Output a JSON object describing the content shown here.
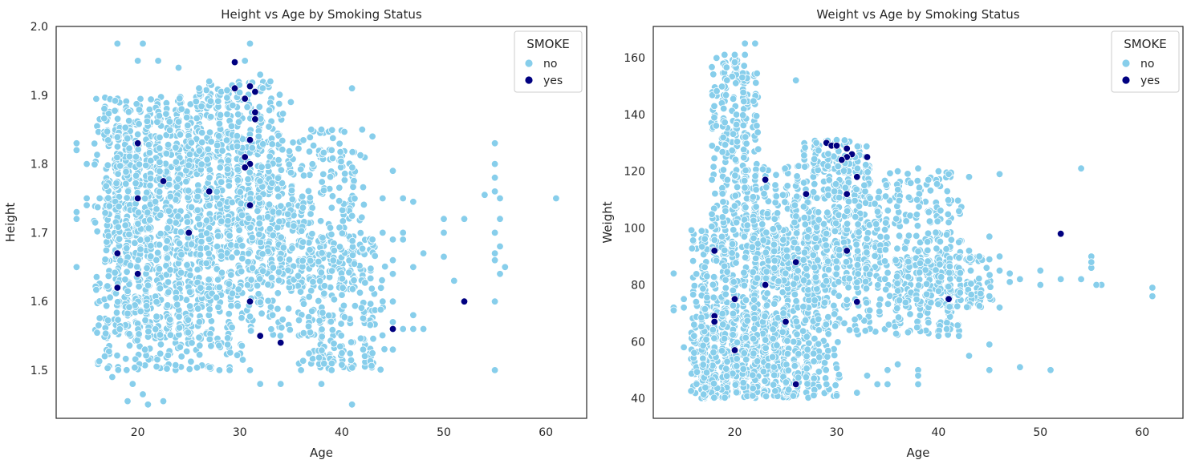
{
  "colors": {
    "no": "#87ceeb",
    "yes": "#000080",
    "axes": "#262626",
    "point_edge": "#ffffff"
  },
  "chart_data": [
    {
      "type": "scatter",
      "title": "Height vs Age by Smoking Status",
      "xlabel": "Age",
      "ylabel": "Height",
      "xlim": [
        12,
        64
      ],
      "ylim": [
        1.43,
        2.0
      ],
      "xticks": [
        20,
        30,
        40,
        50,
        60
      ],
      "yticks": [
        1.5,
        1.6,
        1.7,
        1.8,
        1.9,
        2.0
      ],
      "ytick_labels": [
        "1.5",
        "1.6",
        "1.7",
        "1.8",
        "1.9",
        "2.0"
      ],
      "grid": false,
      "legend": {
        "title": "SMOKE",
        "placement": "top-right",
        "entries": [
          "no",
          "yes"
        ]
      },
      "series": [
        {
          "name": "no",
          "color": "#87ceeb",
          "dense_regions": [
            {
              "x": [
                16,
                30
              ],
              "y": [
                1.5,
                1.9
              ],
              "n": 900
            },
            {
              "x": [
                17,
                26
              ],
              "y": [
                1.55,
                1.88
              ],
              "n": 500
            },
            {
              "x": [
                26,
                34
              ],
              "y": [
                1.6,
                1.92
              ],
              "n": 400
            },
            {
              "x": [
                30,
                42
              ],
              "y": [
                1.62,
                1.85
              ],
              "n": 350
            },
            {
              "x": [
                36,
                44
              ],
              "y": [
                1.5,
                1.7
              ],
              "n": 250
            },
            {
              "x": [
                30,
                36
              ],
              "y": [
                1.55,
                1.78
              ],
              "n": 150
            }
          ],
          "points": [
            [
              14,
              1.83
            ],
            [
              14,
              1.82
            ],
            [
              14,
              1.73
            ],
            [
              14,
              1.72
            ],
            [
              14,
              1.65
            ],
            [
              15,
              1.75
            ],
            [
              15,
              1.74
            ],
            [
              15,
              1.8
            ],
            [
              18,
              1.975
            ],
            [
              20.5,
              1.975
            ],
            [
              20,
              1.95
            ],
            [
              22,
              1.95
            ],
            [
              24,
              1.94
            ],
            [
              31,
              1.975
            ],
            [
              30.5,
              1.95
            ],
            [
              19,
              1.455
            ],
            [
              20.5,
              1.465
            ],
            [
              21,
              1.45
            ],
            [
              22.5,
              1.455
            ],
            [
              17.5,
              1.49
            ],
            [
              19.5,
              1.48
            ],
            [
              41,
              1.45
            ],
            [
              28,
              1.5
            ],
            [
              29,
              1.5
            ],
            [
              31,
              1.5
            ],
            [
              32,
              1.48
            ],
            [
              34,
              1.48
            ],
            [
              38,
              1.48
            ],
            [
              36,
              1.5
            ],
            [
              39,
              1.5
            ],
            [
              41,
              1.91
            ],
            [
              42,
              1.85
            ],
            [
              44,
              1.75
            ],
            [
              45,
              1.79
            ],
            [
              46,
              1.75
            ],
            [
              47,
              1.745
            ],
            [
              43,
              1.69
            ],
            [
              44,
              1.7
            ],
            [
              45,
              1.69
            ],
            [
              45,
              1.66
            ],
            [
              45,
              1.64
            ],
            [
              44,
              1.6
            ],
            [
              45,
              1.57
            ],
            [
              46,
              1.56
            ],
            [
              47,
              1.56
            ],
            [
              48,
              1.56
            ],
            [
              45,
              1.53
            ],
            [
              47,
              1.65
            ],
            [
              48,
              1.67
            ],
            [
              47,
              1.58
            ],
            [
              46,
              1.69
            ],
            [
              45,
              1.6
            ],
            [
              46,
              1.7
            ],
            [
              50,
              1.72
            ],
            [
              50,
              1.665
            ],
            [
              50,
              1.7
            ],
            [
              51,
              1.63
            ],
            [
              52,
              1.72
            ],
            [
              54,
              1.755
            ],
            [
              55,
              1.83
            ],
            [
              55,
              1.8
            ],
            [
              55,
              1.78
            ],
            [
              55,
              1.76
            ],
            [
              55.5,
              1.75
            ],
            [
              55.5,
              1.72
            ],
            [
              55,
              1.7
            ],
            [
              55.5,
              1.68
            ],
            [
              55,
              1.67
            ],
            [
              55,
              1.66
            ],
            [
              55.5,
              1.64
            ],
            [
              55,
              1.6
            ],
            [
              55,
              1.5
            ],
            [
              56,
              1.65
            ],
            [
              61,
              1.75
            ],
            [
              35,
              1.89
            ],
            [
              43,
              1.84
            ],
            [
              37,
              1.85
            ],
            [
              38,
              1.85
            ],
            [
              39,
              1.82
            ],
            [
              33,
              1.92
            ],
            [
              32,
              1.93
            ],
            [
              27,
              1.92
            ],
            [
              26,
              1.91
            ]
          ]
        },
        {
          "name": "yes",
          "color": "#000080",
          "points": [
            [
              29.5,
              1.948
            ],
            [
              31,
              1.913
            ],
            [
              29.5,
              1.91
            ],
            [
              30.5,
              1.895
            ],
            [
              31.5,
              1.905
            ],
            [
              31.5,
              1.875
            ],
            [
              31.5,
              1.865
            ],
            [
              31,
              1.835
            ],
            [
              30.5,
              1.81
            ],
            [
              31,
              1.8
            ],
            [
              30.5,
              1.795
            ],
            [
              31,
              1.74
            ],
            [
              31,
              1.6
            ],
            [
              20,
              1.83
            ],
            [
              22.5,
              1.775
            ],
            [
              20,
              1.75
            ],
            [
              27,
              1.76
            ],
            [
              25,
              1.7
            ],
            [
              18,
              1.67
            ],
            [
              20,
              1.64
            ],
            [
              18,
              1.62
            ],
            [
              32,
              1.55
            ],
            [
              34,
              1.54
            ],
            [
              45,
              1.56
            ],
            [
              52,
              1.6
            ]
          ]
        }
      ]
    },
    {
      "type": "scatter",
      "title": "Weight vs Age by Smoking Status",
      "xlabel": "Age",
      "ylabel": "Weight",
      "xlim": [
        12,
        64
      ],
      "ylim": [
        33,
        171
      ],
      "xticks": [
        20,
        30,
        40,
        50,
        60
      ],
      "yticks": [
        40,
        60,
        80,
        100,
        120,
        140,
        160
      ],
      "ytick_labels": [
        "40",
        "60",
        "80",
        "100",
        "120",
        "140",
        "160"
      ],
      "grid": false,
      "legend": {
        "title": "SMOKE",
        "placement": "top-right",
        "entries": [
          "no",
          "yes"
        ]
      },
      "series": [
        {
          "name": "no",
          "color": "#87ceeb",
          "dense_regions": [
            {
              "x": [
                16,
                30
              ],
              "y": [
                40,
                100
              ],
              "n": 900
            },
            {
              "x": [
                18,
                22
              ],
              "y": [
                100,
                160
              ],
              "n": 250
            },
            {
              "x": [
                21,
                34
              ],
              "y": [
                80,
                122
              ],
              "n": 500
            },
            {
              "x": [
                27,
                33
              ],
              "y": [
                120,
                131
              ],
              "n": 80
            },
            {
              "x": [
                30,
                42
              ],
              "y": [
                62,
                120
              ],
              "n": 400
            },
            {
              "x": [
                36,
                45
              ],
              "y": [
                72,
                90
              ],
              "n": 200
            },
            {
              "x": [
                16,
                26
              ],
              "y": [
                40,
                70
              ],
              "n": 400
            }
          ],
          "points": [
            [
              14,
              84
            ],
            [
              14,
              72
            ],
            [
              14,
              71
            ],
            [
              15,
              75
            ],
            [
              15,
              72
            ],
            [
              15,
              58
            ],
            [
              16,
              62
            ],
            [
              16,
              66
            ],
            [
              19,
              161
            ],
            [
              20,
              161
            ],
            [
              21,
              165
            ],
            [
              22,
              165
            ],
            [
              21,
              161
            ],
            [
              26,
              152
            ],
            [
              28,
              130
            ],
            [
              30,
              131
            ],
            [
              36,
              120
            ],
            [
              38,
              121
            ],
            [
              40,
              120
            ],
            [
              41,
              119
            ],
            [
              43,
              118
            ],
            [
              46,
              119
            ],
            [
              41,
              102
            ],
            [
              42,
              95
            ],
            [
              43,
              92
            ],
            [
              44,
              90
            ],
            [
              45,
              97
            ],
            [
              45,
              89
            ],
            [
              46,
              90
            ],
            [
              46,
              85
            ],
            [
              47,
              84
            ],
            [
              47,
              81
            ],
            [
              48,
              82
            ],
            [
              45,
              76
            ],
            [
              46,
              72
            ],
            [
              45,
              59
            ],
            [
              45,
              50
            ],
            [
              48,
              51
            ],
            [
              51,
              50
            ],
            [
              50,
              80
            ],
            [
              50,
              85
            ],
            [
              52,
              82
            ],
            [
              54,
              82
            ],
            [
              54,
              121
            ],
            [
              55,
              90
            ],
            [
              55,
              86
            ],
            [
              55,
              88
            ],
            [
              56,
              80
            ],
            [
              55.5,
              80
            ],
            [
              61,
              79
            ],
            [
              61,
              76
            ],
            [
              43,
              55
            ],
            [
              40,
              62
            ],
            [
              42,
              62
            ],
            [
              38,
              50
            ],
            [
              38,
              45
            ],
            [
              35,
              45
            ],
            [
              34,
              45
            ],
            [
              33,
              48
            ],
            [
              32,
              42
            ],
            [
              30,
              41
            ],
            [
              29,
              45
            ],
            [
              35,
              50
            ],
            [
              36,
              52
            ],
            [
              38,
              48
            ]
          ]
        },
        {
          "name": "yes",
          "color": "#000080",
          "points": [
            [
              29,
              130
            ],
            [
              29.5,
              129
            ],
            [
              30,
              129
            ],
            [
              31,
              128
            ],
            [
              31.5,
              126
            ],
            [
              31,
              125
            ],
            [
              30.5,
              124
            ],
            [
              33,
              125
            ],
            [
              32,
              118
            ],
            [
              31,
              112
            ],
            [
              27,
              112
            ],
            [
              23,
              117
            ],
            [
              26,
              88
            ],
            [
              23,
              80
            ],
            [
              20,
              75
            ],
            [
              18,
              92
            ],
            [
              18,
              69
            ],
            [
              18,
              67
            ],
            [
              20,
              57
            ],
            [
              26,
              45
            ],
            [
              32,
              74
            ],
            [
              41,
              75
            ],
            [
              52,
              98
            ],
            [
              31,
              92
            ],
            [
              25,
              67
            ]
          ]
        }
      ]
    }
  ]
}
